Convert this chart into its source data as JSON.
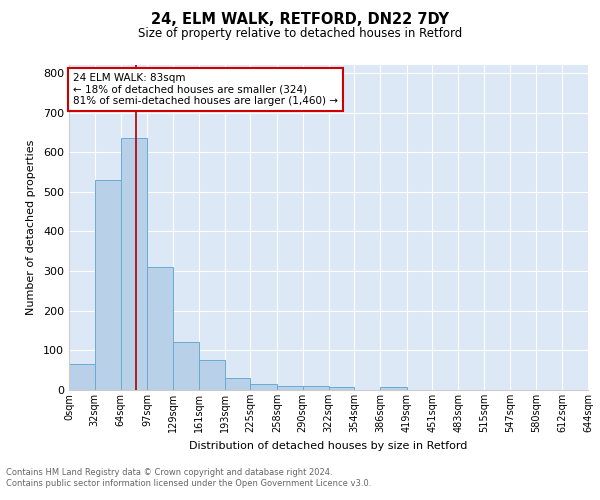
{
  "title1": "24, ELM WALK, RETFORD, DN22 7DY",
  "title2": "Size of property relative to detached houses in Retford",
  "xlabel": "Distribution of detached houses by size in Retford",
  "ylabel": "Number of detached properties",
  "bin_labels": [
    "0sqm",
    "32sqm",
    "64sqm",
    "97sqm",
    "129sqm",
    "161sqm",
    "193sqm",
    "225sqm",
    "258sqm",
    "290sqm",
    "322sqm",
    "354sqm",
    "386sqm",
    "419sqm",
    "451sqm",
    "483sqm",
    "515sqm",
    "547sqm",
    "580sqm",
    "612sqm",
    "644sqm"
  ],
  "bar_values": [
    65,
    530,
    635,
    310,
    120,
    75,
    30,
    14,
    10,
    10,
    8,
    0,
    8,
    0,
    0,
    0,
    0,
    0,
    0,
    0
  ],
  "bar_color": "#b8d0e8",
  "bar_edge_color": "#6aaad4",
  "background_color": "#dce8f5",
  "grid_color": "#ffffff",
  "vline_color": "#aa0000",
  "annotation_text": "24 ELM WALK: 83sqm\n← 18% of detached houses are smaller (324)\n81% of semi-detached houses are larger (1,460) →",
  "annotation_box_color": "#ffffff",
  "annotation_box_edge_color": "#cc0000",
  "ylim": [
    0,
    820
  ],
  "yticks": [
    0,
    100,
    200,
    300,
    400,
    500,
    600,
    700,
    800
  ],
  "footer_text": "Contains HM Land Registry data © Crown copyright and database right 2024.\nContains public sector information licensed under the Open Government Licence v3.0.",
  "bin_edges_sqm": [
    0,
    32,
    64,
    97,
    129,
    161,
    193,
    225,
    258,
    290,
    322,
    354,
    386,
    419,
    451,
    483,
    515,
    547,
    580,
    612,
    644
  ]
}
